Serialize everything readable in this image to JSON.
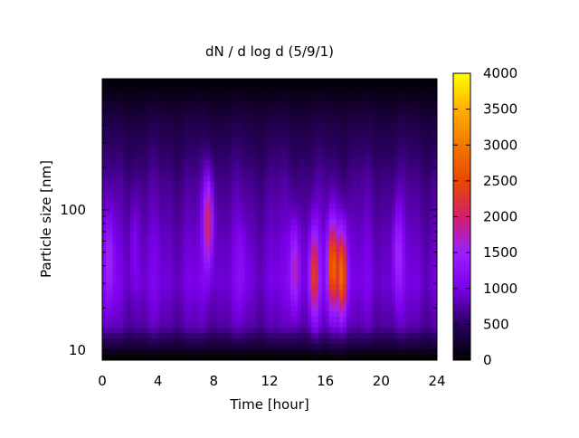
{
  "chart_data": {
    "type": "heatmap",
    "title": "dN / d log d (5/9/1)",
    "xlabel": "Time [hour]",
    "ylabel": "Particle size [nm]",
    "xlim": [
      0,
      24
    ],
    "x_ticks": [
      0,
      4,
      8,
      12,
      16,
      20,
      24
    ],
    "y_scale": "log",
    "ylim": [
      8.5,
      860
    ],
    "y_tick_labels": [
      10,
      100
    ],
    "colorbar": {
      "min": 0,
      "max": 4000,
      "ticks": [
        0,
        500,
        1000,
        1500,
        2000,
        2500,
        3000,
        3500,
        4000
      ],
      "colormap": [
        "#000000",
        "#2a0060",
        "#7a00e8",
        "#9a20ff",
        "#d0206a",
        "#e84800",
        "#f07800",
        "#ffb000",
        "#ffff00"
      ]
    },
    "background_size_profile": [
      {
        "d_nm": 9,
        "dN_dlogd": 0
      },
      {
        "d_nm": 10,
        "dN_dlogd": 250
      },
      {
        "d_nm": 15,
        "dN_dlogd": 850
      },
      {
        "d_nm": 30,
        "dN_dlogd": 1050
      },
      {
        "d_nm": 60,
        "dN_dlogd": 950
      },
      {
        "d_nm": 150,
        "dN_dlogd": 750
      },
      {
        "d_nm": 400,
        "dN_dlogd": 420
      },
      {
        "d_nm": 800,
        "dN_dlogd": 60
      }
    ],
    "features": [
      {
        "time_h": 0.5,
        "peak_d_nm": 45,
        "peak_dN_dlogd": 1600
      },
      {
        "time_h": 2.3,
        "peak_d_nm": 60,
        "peak_dN_dlogd": 1200
      },
      {
        "time_h": 7.6,
        "peak_d_nm": 85,
        "peak_dN_dlogd": 2200
      },
      {
        "time_h": 10.0,
        "peak_d_nm": 40,
        "peak_dN_dlogd": 1250
      },
      {
        "time_h": 13.8,
        "peak_d_nm": 38,
        "peak_dN_dlogd": 1950
      },
      {
        "time_h": 15.2,
        "peak_d_nm": 35,
        "peak_dN_dlogd": 2450
      },
      {
        "time_h": 16.5,
        "peak_d_nm": 40,
        "peak_dN_dlogd": 2900
      },
      {
        "time_h": 17.2,
        "peak_d_nm": 35,
        "peak_dN_dlogd": 3050
      },
      {
        "time_h": 21.2,
        "peak_d_nm": 50,
        "peak_dN_dlogd": 1600
      }
    ],
    "grid": false,
    "legend": "none"
  }
}
